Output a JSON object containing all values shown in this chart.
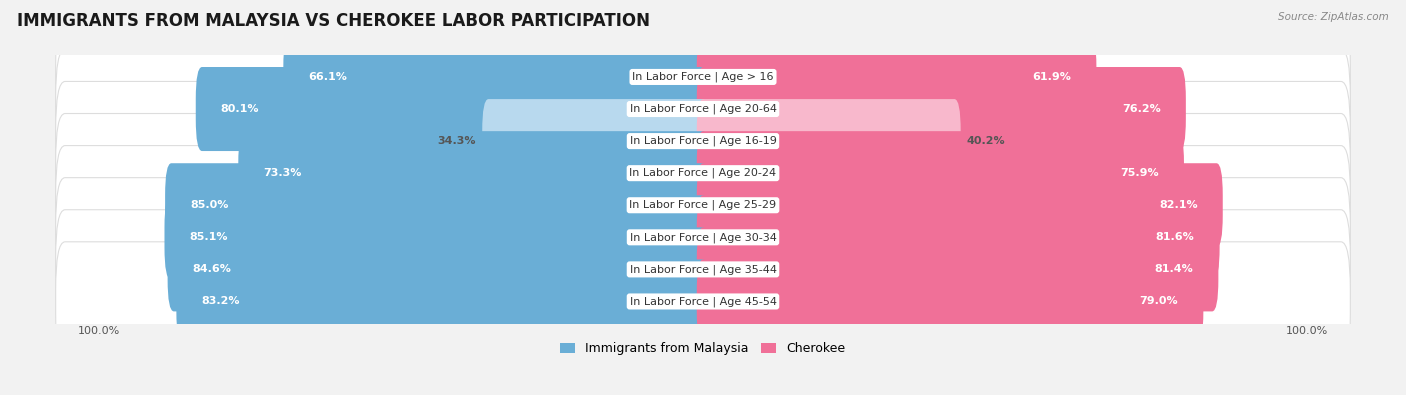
{
  "title": "IMMIGRANTS FROM MALAYSIA VS CHEROKEE LABOR PARTICIPATION",
  "source": "Source: ZipAtlas.com",
  "categories": [
    "In Labor Force | Age > 16",
    "In Labor Force | Age 20-64",
    "In Labor Force | Age 16-19",
    "In Labor Force | Age 20-24",
    "In Labor Force | Age 25-29",
    "In Labor Force | Age 30-34",
    "In Labor Force | Age 35-44",
    "In Labor Force | Age 45-54"
  ],
  "malaysia_values": [
    66.1,
    80.1,
    34.3,
    73.3,
    85.0,
    85.1,
    84.6,
    83.2
  ],
  "cherokee_values": [
    61.9,
    76.2,
    40.2,
    75.9,
    82.1,
    81.6,
    81.4,
    79.0
  ],
  "malaysia_color": "#6aaed6",
  "malaysia_color_light": "#b8d9ee",
  "cherokee_color": "#f07098",
  "cherokee_color_light": "#f8b8cc",
  "bg_color": "#f2f2f2",
  "row_bg_color": "#ffffff",
  "row_border_color": "#dddddd",
  "title_fontsize": 12,
  "label_fontsize": 8,
  "value_fontsize": 8,
  "legend_fontsize": 9,
  "axis_label_fontsize": 8,
  "max_value": 100.0,
  "legend_malaysia": "Immigrants from Malaysia",
  "legend_cherokee": "Cherokee",
  "left_axis_label": "100.0%",
  "right_axis_label": "100.0%"
}
